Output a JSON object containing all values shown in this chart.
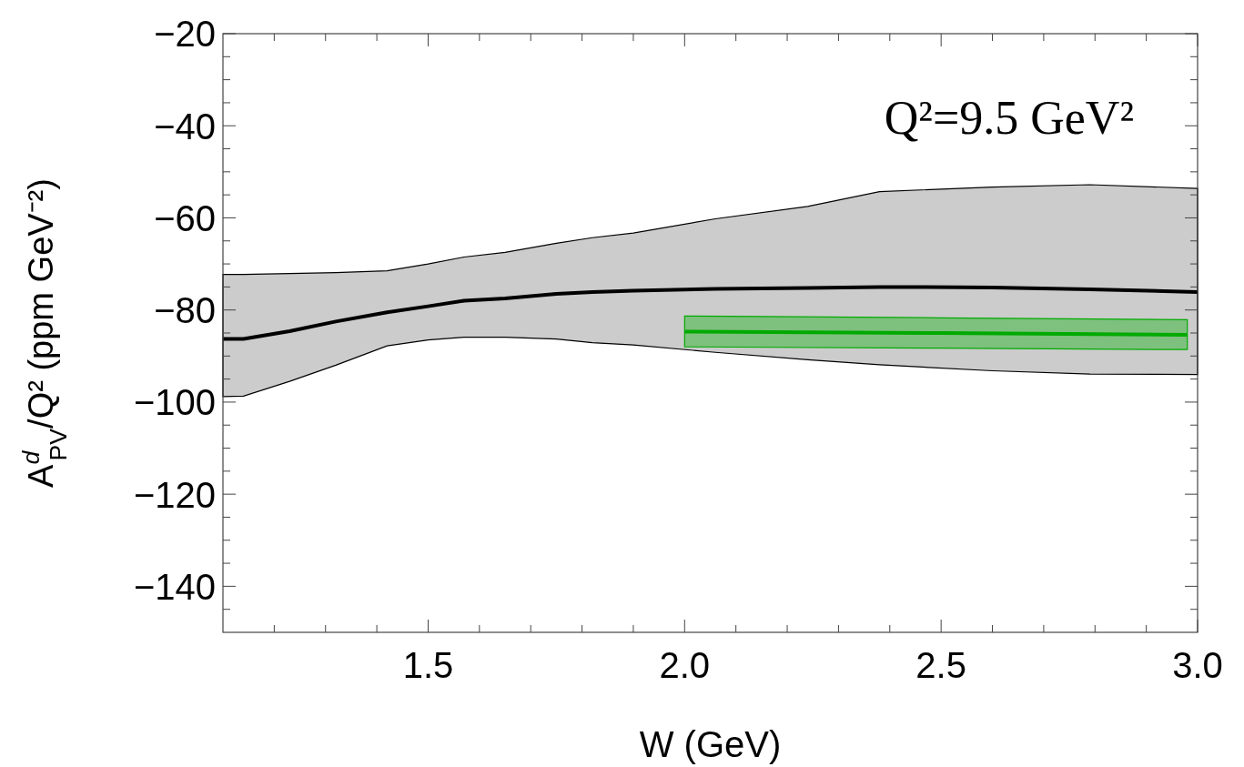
{
  "chart_data": {
    "type": "line",
    "xlabel": "W (GeV)",
    "ylabel": "A$^{d}$$_{PV}$/Q² (ppm GeV⁻²)",
    "annotations": [
      "Q²=9.5 GeV²"
    ],
    "xlim": [
      1.1,
      3.0
    ],
    "ylim": [
      -150,
      -20
    ],
    "xticks": [
      {
        "value": 1.2,
        "label": null
      },
      {
        "value": 1.3,
        "label": null
      },
      {
        "value": 1.4,
        "label": null
      },
      1.5,
      {
        "value": 1.6,
        "label": null
      },
      {
        "value": 1.7,
        "label": null
      },
      {
        "value": 1.8,
        "label": null
      },
      {
        "value": 1.9,
        "label": null
      },
      {
        "value": 2.0,
        "label": "2.0"
      },
      {
        "value": 2.1,
        "label": null
      },
      {
        "value": 2.2,
        "label": null
      },
      {
        "value": 2.3,
        "label": null
      },
      {
        "value": 2.4,
        "label": null
      },
      2.5,
      {
        "value": 2.6,
        "label": null
      },
      {
        "value": 2.7,
        "label": null
      },
      {
        "value": 2.8,
        "label": null
      },
      {
        "value": 2.9,
        "label": null
      },
      {
        "value": 3.0,
        "label": "3.0"
      }
    ],
    "yticks": [
      {
        "value": -145,
        "label": null
      },
      -140,
      {
        "value": -135,
        "label": null
      },
      {
        "value": -130,
        "label": null
      },
      {
        "value": -125,
        "label": null
      },
      -120,
      {
        "value": -115,
        "label": null
      },
      {
        "value": -110,
        "label": null
      },
      {
        "value": -105,
        "label": null
      },
      -100,
      {
        "value": -95,
        "label": null
      },
      {
        "value": -90,
        "label": null
      },
      {
        "value": -85,
        "label": null
      },
      -80,
      {
        "value": -75,
        "label": null
      },
      {
        "value": -70,
        "label": null
      },
      {
        "value": -65,
        "label": null
      },
      -60,
      {
        "value": -55,
        "label": null
      },
      {
        "value": -50,
        "label": null
      },
      {
        "value": -45,
        "label": null
      },
      -40,
      {
        "value": -35,
        "label": null
      },
      {
        "value": -30,
        "label": null
      },
      {
        "value": -25,
        "label": null
      },
      -20
    ],
    "marker": "none",
    "line_style": "solid",
    "series": [
      {
        "color": "#000000",
        "x": [
          1.1,
          1.14,
          1.23,
          1.32,
          1.42,
          1.5,
          1.57,
          1.65,
          1.75,
          1.82,
          1.9,
          2.06,
          2.24,
          2.38,
          2.6,
          2.79,
          3.0
        ],
        "values": [
          -86.3,
          -86.3,
          -84.6,
          -82.5,
          -80.5,
          -79.2,
          -78,
          -77.5,
          -76.5,
          -76.1,
          -75.8,
          -75.4,
          -75.2,
          -75.0,
          -75.1,
          -75.5,
          -76.1
        ],
        "upper": [
          -72.3,
          -72.3,
          -72.1,
          -71.9,
          -71.5,
          -70,
          -68.5,
          -67.5,
          -65.5,
          -64.3,
          -63.3,
          -60.2,
          -57.5,
          -54.3,
          -53.3,
          -52.8,
          -53.6
        ],
        "lower": [
          -98.8,
          -98.7,
          -95.5,
          -92,
          -87.8,
          -86.5,
          -85.9,
          -85.9,
          -86.3,
          -87.1,
          -87.6,
          -89.2,
          -90.8,
          -91.9,
          -93.2,
          -93.9,
          -94.0
        ]
      },
      {
        "color": "#00aa00",
        "x": [
          2.0,
          2.5,
          2.98
        ],
        "values": [
          -84.7,
          -85.0,
          -85.4
        ],
        "upper": [
          -81.3,
          -81.7,
          -82.1
        ],
        "lower": [
          -88.0,
          -88.3,
          -88.6
        ]
      }
    ]
  }
}
